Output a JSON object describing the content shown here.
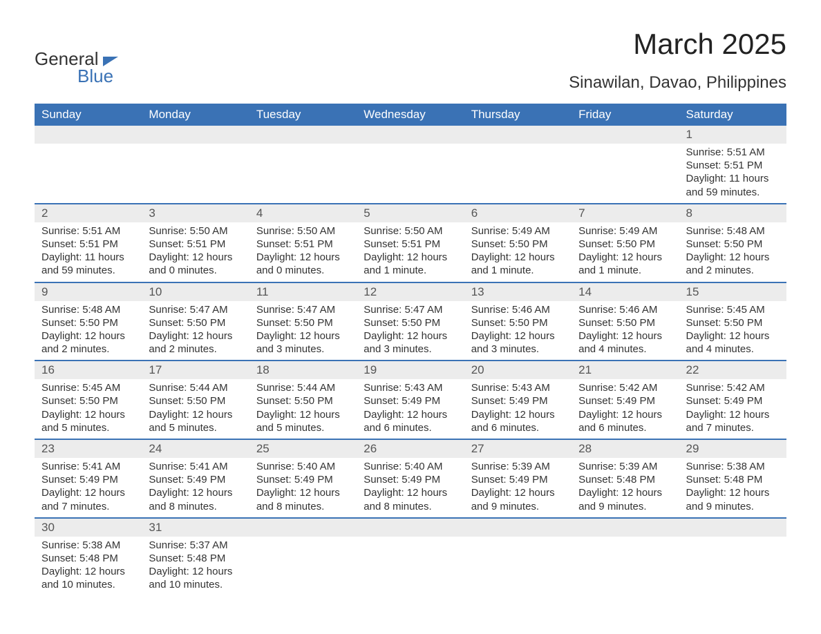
{
  "brand": {
    "word1": "General",
    "word2": "Blue"
  },
  "title": {
    "month": "March 2025",
    "location": "Sinawilan, Davao, Philippines"
  },
  "calendar": {
    "header_bg": "#3a72b5",
    "header_text_color": "#ffffff",
    "stripe_bg": "#ececec",
    "border_color": "#3a72b5",
    "text_color": "#333333",
    "font_family": "Arial",
    "daynum_fontsize": 17,
    "body_fontsize": 15,
    "columns": [
      "Sunday",
      "Monday",
      "Tuesday",
      "Wednesday",
      "Thursday",
      "Friday",
      "Saturday"
    ],
    "weeks": [
      [
        null,
        null,
        null,
        null,
        null,
        null,
        {
          "n": "1",
          "sr": "Sunrise: 5:51 AM",
          "ss": "Sunset: 5:51 PM",
          "d1": "Daylight: 11 hours",
          "d2": "and 59 minutes."
        }
      ],
      [
        {
          "n": "2",
          "sr": "Sunrise: 5:51 AM",
          "ss": "Sunset: 5:51 PM",
          "d1": "Daylight: 11 hours",
          "d2": "and 59 minutes."
        },
        {
          "n": "3",
          "sr": "Sunrise: 5:50 AM",
          "ss": "Sunset: 5:51 PM",
          "d1": "Daylight: 12 hours",
          "d2": "and 0 minutes."
        },
        {
          "n": "4",
          "sr": "Sunrise: 5:50 AM",
          "ss": "Sunset: 5:51 PM",
          "d1": "Daylight: 12 hours",
          "d2": "and 0 minutes."
        },
        {
          "n": "5",
          "sr": "Sunrise: 5:50 AM",
          "ss": "Sunset: 5:51 PM",
          "d1": "Daylight: 12 hours",
          "d2": "and 1 minute."
        },
        {
          "n": "6",
          "sr": "Sunrise: 5:49 AM",
          "ss": "Sunset: 5:50 PM",
          "d1": "Daylight: 12 hours",
          "d2": "and 1 minute."
        },
        {
          "n": "7",
          "sr": "Sunrise: 5:49 AM",
          "ss": "Sunset: 5:50 PM",
          "d1": "Daylight: 12 hours",
          "d2": "and 1 minute."
        },
        {
          "n": "8",
          "sr": "Sunrise: 5:48 AM",
          "ss": "Sunset: 5:50 PM",
          "d1": "Daylight: 12 hours",
          "d2": "and 2 minutes."
        }
      ],
      [
        {
          "n": "9",
          "sr": "Sunrise: 5:48 AM",
          "ss": "Sunset: 5:50 PM",
          "d1": "Daylight: 12 hours",
          "d2": "and 2 minutes."
        },
        {
          "n": "10",
          "sr": "Sunrise: 5:47 AM",
          "ss": "Sunset: 5:50 PM",
          "d1": "Daylight: 12 hours",
          "d2": "and 2 minutes."
        },
        {
          "n": "11",
          "sr": "Sunrise: 5:47 AM",
          "ss": "Sunset: 5:50 PM",
          "d1": "Daylight: 12 hours",
          "d2": "and 3 minutes."
        },
        {
          "n": "12",
          "sr": "Sunrise: 5:47 AM",
          "ss": "Sunset: 5:50 PM",
          "d1": "Daylight: 12 hours",
          "d2": "and 3 minutes."
        },
        {
          "n": "13",
          "sr": "Sunrise: 5:46 AM",
          "ss": "Sunset: 5:50 PM",
          "d1": "Daylight: 12 hours",
          "d2": "and 3 minutes."
        },
        {
          "n": "14",
          "sr": "Sunrise: 5:46 AM",
          "ss": "Sunset: 5:50 PM",
          "d1": "Daylight: 12 hours",
          "d2": "and 4 minutes."
        },
        {
          "n": "15",
          "sr": "Sunrise: 5:45 AM",
          "ss": "Sunset: 5:50 PM",
          "d1": "Daylight: 12 hours",
          "d2": "and 4 minutes."
        }
      ],
      [
        {
          "n": "16",
          "sr": "Sunrise: 5:45 AM",
          "ss": "Sunset: 5:50 PM",
          "d1": "Daylight: 12 hours",
          "d2": "and 5 minutes."
        },
        {
          "n": "17",
          "sr": "Sunrise: 5:44 AM",
          "ss": "Sunset: 5:50 PM",
          "d1": "Daylight: 12 hours",
          "d2": "and 5 minutes."
        },
        {
          "n": "18",
          "sr": "Sunrise: 5:44 AM",
          "ss": "Sunset: 5:50 PM",
          "d1": "Daylight: 12 hours",
          "d2": "and 5 minutes."
        },
        {
          "n": "19",
          "sr": "Sunrise: 5:43 AM",
          "ss": "Sunset: 5:49 PM",
          "d1": "Daylight: 12 hours",
          "d2": "and 6 minutes."
        },
        {
          "n": "20",
          "sr": "Sunrise: 5:43 AM",
          "ss": "Sunset: 5:49 PM",
          "d1": "Daylight: 12 hours",
          "d2": "and 6 minutes."
        },
        {
          "n": "21",
          "sr": "Sunrise: 5:42 AM",
          "ss": "Sunset: 5:49 PM",
          "d1": "Daylight: 12 hours",
          "d2": "and 6 minutes."
        },
        {
          "n": "22",
          "sr": "Sunrise: 5:42 AM",
          "ss": "Sunset: 5:49 PM",
          "d1": "Daylight: 12 hours",
          "d2": "and 7 minutes."
        }
      ],
      [
        {
          "n": "23",
          "sr": "Sunrise: 5:41 AM",
          "ss": "Sunset: 5:49 PM",
          "d1": "Daylight: 12 hours",
          "d2": "and 7 minutes."
        },
        {
          "n": "24",
          "sr": "Sunrise: 5:41 AM",
          "ss": "Sunset: 5:49 PM",
          "d1": "Daylight: 12 hours",
          "d2": "and 8 minutes."
        },
        {
          "n": "25",
          "sr": "Sunrise: 5:40 AM",
          "ss": "Sunset: 5:49 PM",
          "d1": "Daylight: 12 hours",
          "d2": "and 8 minutes."
        },
        {
          "n": "26",
          "sr": "Sunrise: 5:40 AM",
          "ss": "Sunset: 5:49 PM",
          "d1": "Daylight: 12 hours",
          "d2": "and 8 minutes."
        },
        {
          "n": "27",
          "sr": "Sunrise: 5:39 AM",
          "ss": "Sunset: 5:49 PM",
          "d1": "Daylight: 12 hours",
          "d2": "and 9 minutes."
        },
        {
          "n": "28",
          "sr": "Sunrise: 5:39 AM",
          "ss": "Sunset: 5:48 PM",
          "d1": "Daylight: 12 hours",
          "d2": "and 9 minutes."
        },
        {
          "n": "29",
          "sr": "Sunrise: 5:38 AM",
          "ss": "Sunset: 5:48 PM",
          "d1": "Daylight: 12 hours",
          "d2": "and 9 minutes."
        }
      ],
      [
        {
          "n": "30",
          "sr": "Sunrise: 5:38 AM",
          "ss": "Sunset: 5:48 PM",
          "d1": "Daylight: 12 hours",
          "d2": "and 10 minutes."
        },
        {
          "n": "31",
          "sr": "Sunrise: 5:37 AM",
          "ss": "Sunset: 5:48 PM",
          "d1": "Daylight: 12 hours",
          "d2": "and 10 minutes."
        },
        null,
        null,
        null,
        null,
        null
      ]
    ]
  }
}
